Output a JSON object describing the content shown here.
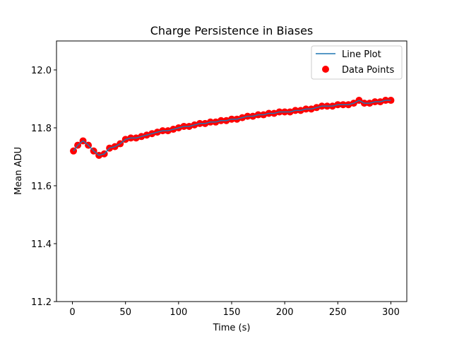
{
  "chart_data": {
    "type": "line",
    "title": "Charge Persistence in Biases",
    "xlabel": "Time (s)",
    "ylabel": "Mean ADU",
    "xlim": [
      -15,
      315
    ],
    "ylim": [
      11.2,
      12.1
    ],
    "xticks": [
      0,
      50,
      100,
      150,
      200,
      250,
      300
    ],
    "xtick_labels": [
      "0",
      "50",
      "100",
      "150",
      "200",
      "250",
      "300"
    ],
    "yticks": [
      11.2,
      11.4,
      11.6,
      11.8,
      12.0
    ],
    "ytick_labels": [
      "11.2",
      "11.4",
      "11.6",
      "11.8",
      "12.0"
    ],
    "grid": false,
    "legend_position": "top-right",
    "legend": [
      "Line Plot",
      "Data Points"
    ],
    "colors": {
      "line": "#1f77b4",
      "points": "#ff0000"
    },
    "series": [
      {
        "name": "Line Plot",
        "kind": "line",
        "x": [
          1,
          5,
          10,
          15,
          20,
          25,
          30,
          35,
          40,
          45,
          50,
          55,
          60,
          65,
          70,
          75,
          80,
          85,
          90,
          95,
          100,
          105,
          110,
          115,
          120,
          125,
          130,
          135,
          140,
          145,
          150,
          155,
          160,
          165,
          170,
          175,
          180,
          185,
          190,
          195,
          200,
          205,
          210,
          215,
          220,
          225,
          230,
          235,
          240,
          245,
          250,
          255,
          260,
          265,
          270,
          275,
          280,
          285,
          290,
          295,
          300
        ],
        "y": [
          11.72,
          11.74,
          11.755,
          11.74,
          11.72,
          11.705,
          11.71,
          11.73,
          11.735,
          11.745,
          11.76,
          11.765,
          11.765,
          11.77,
          11.775,
          11.78,
          11.785,
          11.79,
          11.79,
          11.795,
          11.8,
          11.805,
          11.805,
          11.81,
          11.815,
          11.815,
          11.82,
          11.82,
          11.825,
          11.825,
          11.83,
          11.83,
          11.835,
          11.84,
          11.84,
          11.845,
          11.845,
          11.85,
          11.85,
          11.855,
          11.855,
          11.855,
          11.86,
          11.86,
          11.865,
          11.865,
          11.87,
          11.875,
          11.875,
          11.875,
          11.88,
          11.88,
          11.88,
          11.885,
          11.895,
          11.885,
          11.885,
          11.89,
          11.89,
          11.895,
          11.895
        ]
      },
      {
        "name": "Data Points",
        "kind": "scatter",
        "x": [
          1,
          5,
          10,
          15,
          20,
          25,
          30,
          35,
          40,
          45,
          50,
          55,
          60,
          65,
          70,
          75,
          80,
          85,
          90,
          95,
          100,
          105,
          110,
          115,
          120,
          125,
          130,
          135,
          140,
          145,
          150,
          155,
          160,
          165,
          170,
          175,
          180,
          185,
          190,
          195,
          200,
          205,
          210,
          215,
          220,
          225,
          230,
          235,
          240,
          245,
          250,
          255,
          260,
          265,
          270,
          275,
          280,
          285,
          290,
          295,
          300
        ],
        "y": [
          11.72,
          11.74,
          11.755,
          11.74,
          11.72,
          11.705,
          11.71,
          11.73,
          11.735,
          11.745,
          11.76,
          11.765,
          11.765,
          11.77,
          11.775,
          11.78,
          11.785,
          11.79,
          11.79,
          11.795,
          11.8,
          11.805,
          11.805,
          11.81,
          11.815,
          11.815,
          11.82,
          11.82,
          11.825,
          11.825,
          11.83,
          11.83,
          11.835,
          11.84,
          11.84,
          11.845,
          11.845,
          11.85,
          11.85,
          11.855,
          11.855,
          11.855,
          11.86,
          11.86,
          11.865,
          11.865,
          11.87,
          11.875,
          11.875,
          11.875,
          11.88,
          11.88,
          11.88,
          11.885,
          11.895,
          11.885,
          11.885,
          11.89,
          11.89,
          11.895,
          11.895
        ]
      }
    ]
  }
}
